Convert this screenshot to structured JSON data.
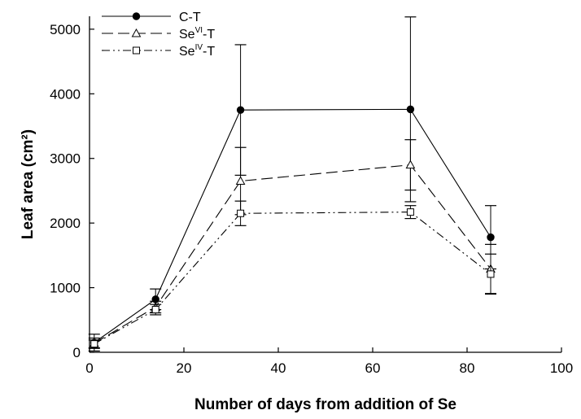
{
  "chart_data": {
    "type": "line",
    "xlabel": "Number of days from addition of Se",
    "ylabel": "Leaf area (cm²)",
    "xlim": [
      0,
      100
    ],
    "ylim": [
      0,
      5200
    ],
    "xticks": [
      0,
      20,
      40,
      60,
      80,
      100
    ],
    "yticks": [
      0,
      1000,
      2000,
      3000,
      4000,
      5000
    ],
    "grid": false,
    "legend_position": "top-left",
    "series": [
      {
        "name": "C-T",
        "legend": {
          "base": "C-T",
          "sup": "",
          "suffix": ""
        },
        "marker": "filled-circle",
        "line_style": "solid",
        "x": [
          1,
          14,
          32,
          68,
          85
        ],
        "y": [
          150,
          820,
          3750,
          3760,
          1780
        ],
        "err": [
          130,
          160,
          1010,
          1430,
          490
        ]
      },
      {
        "name": "SeVI-T",
        "legend": {
          "base": "Se",
          "sup": "VI",
          "suffix": "-T"
        },
        "marker": "open-triangle",
        "line_style": "dashed",
        "x": [
          1,
          14,
          32,
          68,
          85
        ],
        "y": [
          140,
          700,
          2650,
          2900,
          1290
        ],
        "err": [
          80,
          90,
          520,
          390,
          380
        ]
      },
      {
        "name": "SeIV-T",
        "legend": {
          "base": "Se",
          "sup": "IV",
          "suffix": "-T"
        },
        "marker": "open-square",
        "line_style": "dash-dot-dot",
        "x": [
          1,
          14,
          32,
          68,
          85
        ],
        "y": [
          130,
          660,
          2150,
          2170,
          1210
        ],
        "err": [
          60,
          80,
          190,
          100,
          310
        ]
      }
    ]
  }
}
